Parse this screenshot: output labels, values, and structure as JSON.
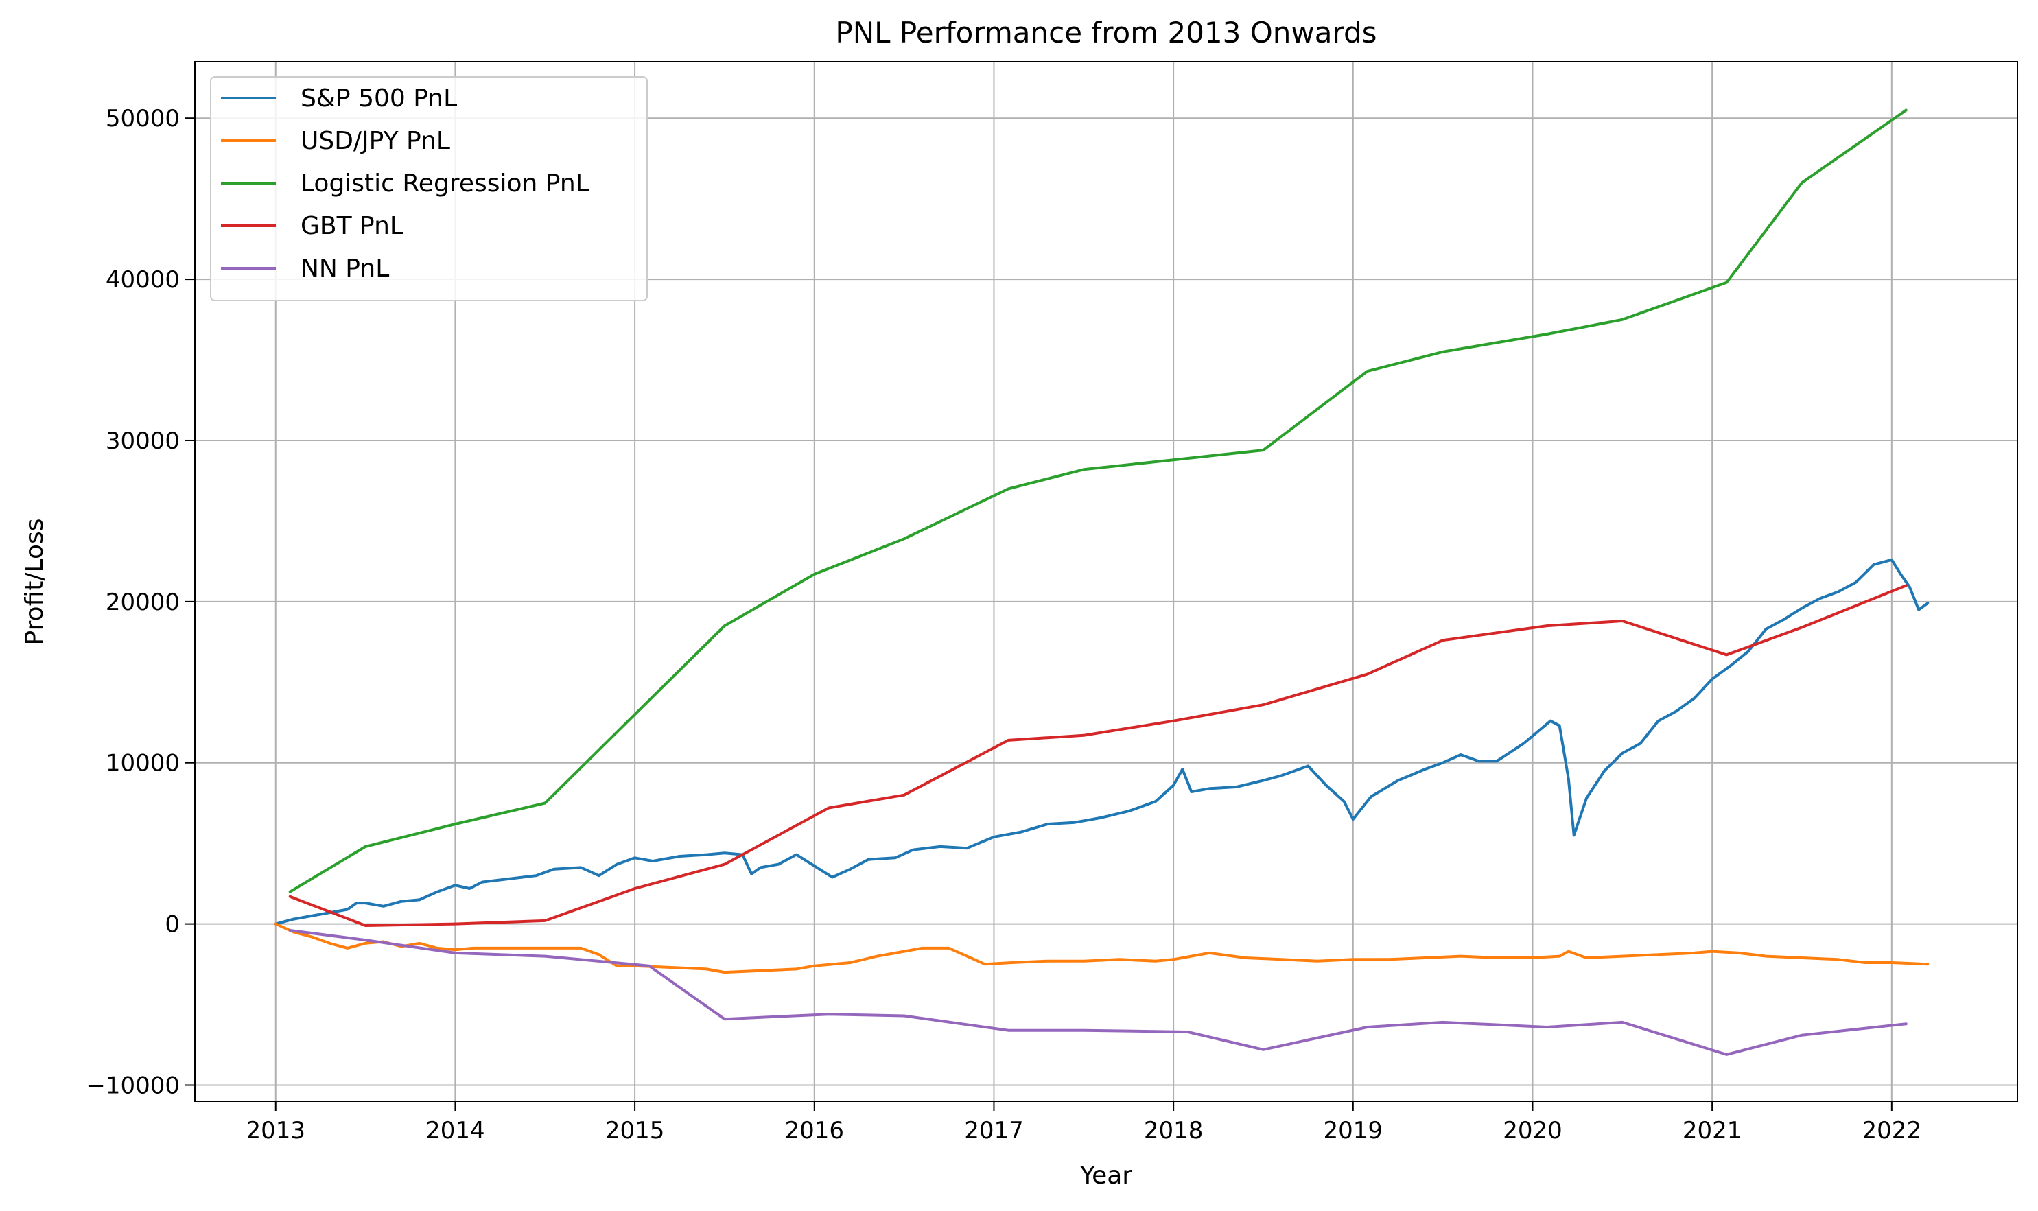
{
  "chart_data": {
    "type": "line",
    "title": "PNL Performance from 2013 Onwards",
    "xlabel": "Year",
    "ylabel": "Profit/Loss",
    "xlim": [
      2012.55,
      2022.7
    ],
    "ylim": [
      -11000,
      53500
    ],
    "xticks": [
      2013,
      2014,
      2015,
      2016,
      2017,
      2018,
      2019,
      2020,
      2021,
      2022
    ],
    "yticks": [
      -10000,
      0,
      10000,
      20000,
      30000,
      40000,
      50000
    ],
    "grid": true,
    "legend": "upper-left",
    "series": [
      {
        "name": "S&P 500 PnL",
        "color": "#1f77b4",
        "points": [
          [
            2013.0,
            0
          ],
          [
            2013.1,
            300
          ],
          [
            2013.2,
            500
          ],
          [
            2013.3,
            700
          ],
          [
            2013.4,
            900
          ],
          [
            2013.45,
            1300
          ],
          [
            2013.5,
            1300
          ],
          [
            2013.6,
            1100
          ],
          [
            2013.7,
            1400
          ],
          [
            2013.8,
            1500
          ],
          [
            2013.9,
            2000
          ],
          [
            2014.0,
            2400
          ],
          [
            2014.08,
            2200
          ],
          [
            2014.15,
            2600
          ],
          [
            2014.3,
            2800
          ],
          [
            2014.45,
            3000
          ],
          [
            2014.55,
            3400
          ],
          [
            2014.7,
            3500
          ],
          [
            2014.8,
            3000
          ],
          [
            2014.9,
            3700
          ],
          [
            2015.0,
            4100
          ],
          [
            2015.1,
            3900
          ],
          [
            2015.25,
            4200
          ],
          [
            2015.4,
            4300
          ],
          [
            2015.5,
            4400
          ],
          [
            2015.6,
            4300
          ],
          [
            2015.65,
            3100
          ],
          [
            2015.7,
            3500
          ],
          [
            2015.8,
            3700
          ],
          [
            2015.9,
            4300
          ],
          [
            2016.0,
            3600
          ],
          [
            2016.1,
            2900
          ],
          [
            2016.2,
            3400
          ],
          [
            2016.3,
            4000
          ],
          [
            2016.45,
            4100
          ],
          [
            2016.55,
            4600
          ],
          [
            2016.7,
            4800
          ],
          [
            2016.85,
            4700
          ],
          [
            2017.0,
            5400
          ],
          [
            2017.15,
            5700
          ],
          [
            2017.3,
            6200
          ],
          [
            2017.45,
            6300
          ],
          [
            2017.6,
            6600
          ],
          [
            2017.75,
            7000
          ],
          [
            2017.9,
            7600
          ],
          [
            2018.0,
            8600
          ],
          [
            2018.05,
            9600
          ],
          [
            2018.1,
            8200
          ],
          [
            2018.2,
            8400
          ],
          [
            2018.35,
            8500
          ],
          [
            2018.5,
            8900
          ],
          [
            2018.6,
            9200
          ],
          [
            2018.75,
            9800
          ],
          [
            2018.85,
            8600
          ],
          [
            2018.95,
            7600
          ],
          [
            2019.0,
            6500
          ],
          [
            2019.1,
            7900
          ],
          [
            2019.25,
            8900
          ],
          [
            2019.4,
            9600
          ],
          [
            2019.5,
            10000
          ],
          [
            2019.6,
            10500
          ],
          [
            2019.7,
            10100
          ],
          [
            2019.8,
            10100
          ],
          [
            2019.95,
            11200
          ],
          [
            2020.1,
            12600
          ],
          [
            2020.15,
            12300
          ],
          [
            2020.2,
            9000
          ],
          [
            2020.23,
            5500
          ],
          [
            2020.3,
            7800
          ],
          [
            2020.4,
            9500
          ],
          [
            2020.5,
            10600
          ],
          [
            2020.6,
            11200
          ],
          [
            2020.7,
            12600
          ],
          [
            2020.8,
            13200
          ],
          [
            2020.9,
            14000
          ],
          [
            2021.0,
            15200
          ],
          [
            2021.1,
            16000
          ],
          [
            2021.2,
            16900
          ],
          [
            2021.3,
            18300
          ],
          [
            2021.4,
            18900
          ],
          [
            2021.5,
            19600
          ],
          [
            2021.6,
            20200
          ],
          [
            2021.7,
            20600
          ],
          [
            2021.8,
            21200
          ],
          [
            2021.9,
            22300
          ],
          [
            2022.0,
            22600
          ],
          [
            2022.05,
            21700
          ],
          [
            2022.1,
            20900
          ],
          [
            2022.15,
            19500
          ],
          [
            2022.2,
            19900
          ]
        ]
      },
      {
        "name": "USD/JPY PnL",
        "color": "#ff7f0e",
        "points": [
          [
            2013.0,
            0
          ],
          [
            2013.1,
            -500
          ],
          [
            2013.2,
            -800
          ],
          [
            2013.3,
            -1200
          ],
          [
            2013.4,
            -1500
          ],
          [
            2013.5,
            -1200
          ],
          [
            2013.6,
            -1100
          ],
          [
            2013.7,
            -1400
          ],
          [
            2013.8,
            -1200
          ],
          [
            2013.9,
            -1500
          ],
          [
            2014.0,
            -1600
          ],
          [
            2014.1,
            -1500
          ],
          [
            2014.3,
            -1500
          ],
          [
            2014.5,
            -1500
          ],
          [
            2014.7,
            -1500
          ],
          [
            2014.8,
            -1900
          ],
          [
            2014.9,
            -2600
          ],
          [
            2015.0,
            -2600
          ],
          [
            2015.2,
            -2700
          ],
          [
            2015.4,
            -2800
          ],
          [
            2015.5,
            -3000
          ],
          [
            2015.7,
            -2900
          ],
          [
            2015.9,
            -2800
          ],
          [
            2016.0,
            -2600
          ],
          [
            2016.2,
            -2400
          ],
          [
            2016.35,
            -2000
          ],
          [
            2016.5,
            -1700
          ],
          [
            2016.6,
            -1500
          ],
          [
            2016.75,
            -1500
          ],
          [
            2016.85,
            -2000
          ],
          [
            2016.95,
            -2500
          ],
          [
            2017.1,
            -2400
          ],
          [
            2017.3,
            -2300
          ],
          [
            2017.5,
            -2300
          ],
          [
            2017.7,
            -2200
          ],
          [
            2017.9,
            -2300
          ],
          [
            2018.0,
            -2200
          ],
          [
            2018.2,
            -1800
          ],
          [
            2018.4,
            -2100
          ],
          [
            2018.6,
            -2200
          ],
          [
            2018.8,
            -2300
          ],
          [
            2019.0,
            -2200
          ],
          [
            2019.2,
            -2200
          ],
          [
            2019.4,
            -2100
          ],
          [
            2019.6,
            -2000
          ],
          [
            2019.8,
            -2100
          ],
          [
            2020.0,
            -2100
          ],
          [
            2020.15,
            -2000
          ],
          [
            2020.2,
            -1700
          ],
          [
            2020.3,
            -2100
          ],
          [
            2020.5,
            -2000
          ],
          [
            2020.7,
            -1900
          ],
          [
            2020.9,
            -1800
          ],
          [
            2021.0,
            -1700
          ],
          [
            2021.15,
            -1800
          ],
          [
            2021.3,
            -2000
          ],
          [
            2021.5,
            -2100
          ],
          [
            2021.7,
            -2200
          ],
          [
            2021.85,
            -2400
          ],
          [
            2022.0,
            -2400
          ],
          [
            2022.2,
            -2500
          ]
        ]
      },
      {
        "name": "Logistic Regression PnL",
        "color": "#2ca02c",
        "points": [
          [
            2013.08,
            2000
          ],
          [
            2013.5,
            4800
          ],
          [
            2014.0,
            6200
          ],
          [
            2014.5,
            7500
          ],
          [
            2015.0,
            13000
          ],
          [
            2015.5,
            18500
          ],
          [
            2016.0,
            21700
          ],
          [
            2016.5,
            23900
          ],
          [
            2017.08,
            27000
          ],
          [
            2017.5,
            28200
          ],
          [
            2018.0,
            28800
          ],
          [
            2018.5,
            29400
          ],
          [
            2019.08,
            34300
          ],
          [
            2019.5,
            35500
          ],
          [
            2020.08,
            36600
          ],
          [
            2020.5,
            37500
          ],
          [
            2021.08,
            39800
          ],
          [
            2021.5,
            46000
          ],
          [
            2022.08,
            50500
          ]
        ]
      },
      {
        "name": "GBT PnL",
        "color": "#d62728",
        "points": [
          [
            2013.08,
            1700
          ],
          [
            2013.5,
            -100
          ],
          [
            2014.0,
            0
          ],
          [
            2014.5,
            200
          ],
          [
            2015.0,
            2200
          ],
          [
            2015.5,
            3700
          ],
          [
            2016.08,
            7200
          ],
          [
            2016.5,
            8000
          ],
          [
            2017.08,
            11400
          ],
          [
            2017.5,
            11700
          ],
          [
            2018.0,
            12600
          ],
          [
            2018.5,
            13600
          ],
          [
            2019.08,
            15500
          ],
          [
            2019.5,
            17600
          ],
          [
            2020.08,
            18500
          ],
          [
            2020.5,
            18800
          ],
          [
            2021.08,
            16700
          ],
          [
            2021.5,
            18400
          ],
          [
            2022.08,
            21000
          ]
        ]
      },
      {
        "name": "NN PnL",
        "color": "#9467bd",
        "points": [
          [
            2013.08,
            -400
          ],
          [
            2013.5,
            -1000
          ],
          [
            2014.0,
            -1800
          ],
          [
            2014.5,
            -2000
          ],
          [
            2015.08,
            -2600
          ],
          [
            2015.5,
            -5900
          ],
          [
            2016.08,
            -5600
          ],
          [
            2016.5,
            -5700
          ],
          [
            2017.08,
            -6600
          ],
          [
            2017.5,
            -6600
          ],
          [
            2018.08,
            -6700
          ],
          [
            2018.5,
            -7800
          ],
          [
            2019.08,
            -6400
          ],
          [
            2019.5,
            -6100
          ],
          [
            2020.08,
            -6400
          ],
          [
            2020.5,
            -6100
          ],
          [
            2021.08,
            -8100
          ],
          [
            2021.5,
            -6900
          ],
          [
            2022.08,
            -6200
          ]
        ]
      }
    ]
  }
}
